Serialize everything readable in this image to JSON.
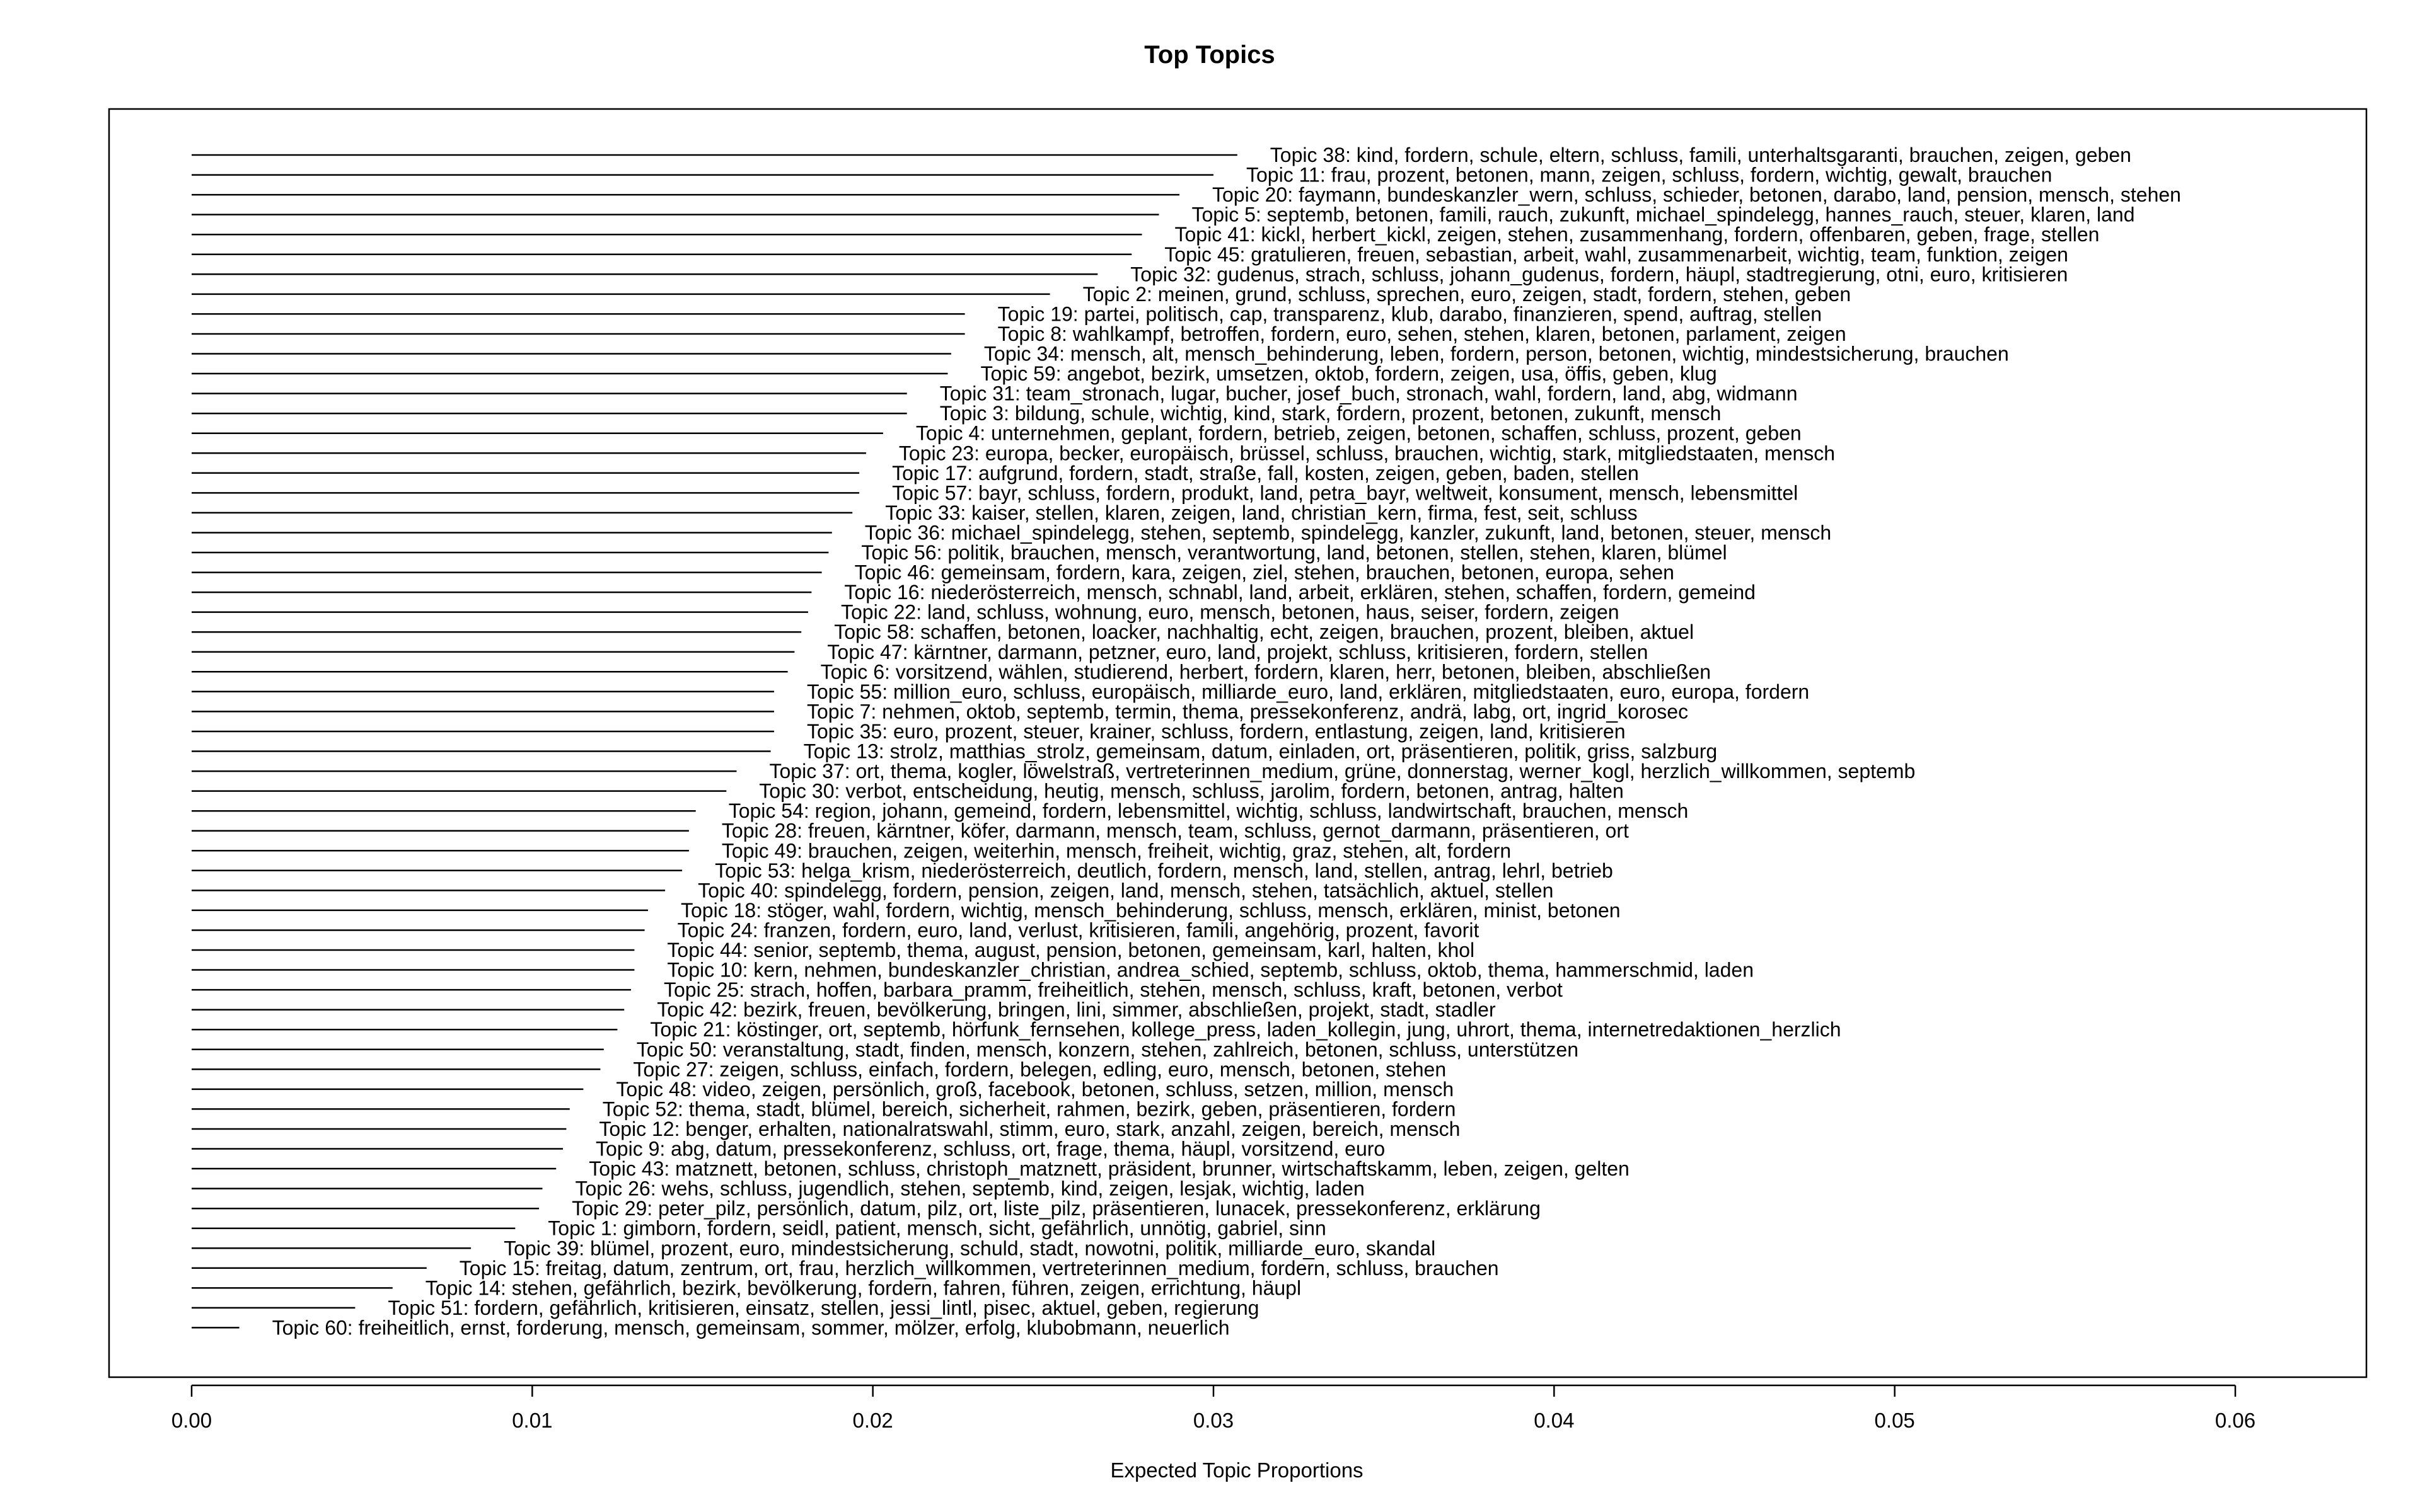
{
  "chart_data": {
    "type": "bar",
    "orientation": "horizontal",
    "title": "Top Topics",
    "xlabel": "Expected Topic Proportions",
    "xlim": [
      0.0,
      0.06
    ],
    "xticks": [
      "0.00",
      "0.01",
      "0.02",
      "0.03",
      "0.04",
      "0.05",
      "0.06"
    ],
    "xtick_values": [
      0.0,
      0.01,
      0.02,
      0.03,
      0.04,
      0.05,
      0.06
    ],
    "bars": [
      {
        "value": 0.0307,
        "label": "Topic 38: kind, fordern, schule, eltern, schluss, famili, unterhaltsgaranti, brauchen, zeigen, geben"
      },
      {
        "value": 0.03,
        "label": "Topic 11: frau, prozent, betonen, mann, zeigen, schluss, fordern, wichtig, gewalt, brauchen"
      },
      {
        "value": 0.029,
        "label": "Topic 20: faymann, bundeskanzler_wern, schluss, schieder, betonen, darabo, land, pension, mensch, stehen"
      },
      {
        "value": 0.0284,
        "label": "Topic 5: septemb, betonen, famili, rauch, zukunft, michael_spindelegg, hannes_rauch, steuer, klaren, land"
      },
      {
        "value": 0.0279,
        "label": "Topic 41: kickl, herbert_kickl, zeigen, stehen, zusammenhang, fordern, offenbaren, geben, frage, stellen"
      },
      {
        "value": 0.0276,
        "label": "Topic 45: gratulieren, freuen, sebastian, arbeit, wahl, zusammenarbeit, wichtig, team, funktion, zeigen"
      },
      {
        "value": 0.0266,
        "label": "Topic 32: gudenus, strach, schluss, johann_gudenus, fordern, häupl, stadtregierung, otni, euro, kritisieren"
      },
      {
        "value": 0.0252,
        "label": "Topic 2: meinen, grund, schluss, sprechen, euro, zeigen, stadt, fordern, stehen, geben"
      },
      {
        "value": 0.0227,
        "label": "Topic 19: partei, politisch, cap, transparenz, klub, darabo, finanzieren, spend, auftrag, stellen"
      },
      {
        "value": 0.0227,
        "label": "Topic 8: wahlkampf, betroffen, fordern, euro, sehen, stehen, klaren, betonen, parlament, zeigen"
      },
      {
        "value": 0.0223,
        "label": "Topic 34: mensch, alt, mensch_behinderung, leben, fordern, person, betonen, wichtig, mindestsicherung, brauchen"
      },
      {
        "value": 0.0222,
        "label": "Topic 59: angebot, bezirk, umsetzen, oktob, fordern, zeigen, usa, öffis, geben, klug"
      },
      {
        "value": 0.021,
        "label": "Topic 31: team_stronach, lugar, bucher, josef_buch, stronach, wahl, fordern, land, abg, widmann"
      },
      {
        "value": 0.021,
        "label": "Topic 3: bildung, schule, wichtig, kind, stark, fordern, prozent, betonen, zukunft, mensch"
      },
      {
        "value": 0.0203,
        "label": "Topic 4: unternehmen, geplant, fordern, betrieb, zeigen, betonen, schaffen, schluss, prozent, geben"
      },
      {
        "value": 0.0198,
        "label": "Topic 23: europa, becker, europäisch, brüssel, schluss, brauchen, wichtig, stark, mitgliedstaaten, mensch"
      },
      {
        "value": 0.0196,
        "label": "Topic 17: aufgrund, fordern, stadt, straße, fall, kosten, zeigen, geben, baden, stellen"
      },
      {
        "value": 0.0196,
        "label": "Topic 57: bayr, schluss, fordern, produkt, land, petra_bayr, weltweit, konsument, mensch, lebensmittel"
      },
      {
        "value": 0.0194,
        "label": "Topic 33: kaiser, stellen, klaren, zeigen, land, christian_kern, firma, fest, seit, schluss"
      },
      {
        "value": 0.0188,
        "label": "Topic 36: michael_spindelegg, stehen, septemb, spindelegg, kanzler, zukunft, land, betonen, steuer, mensch"
      },
      {
        "value": 0.0187,
        "label": "Topic 56: politik, brauchen, mensch, verantwortung, land, betonen, stellen, stehen, klaren, blümel"
      },
      {
        "value": 0.0185,
        "label": "Topic 46: gemeinsam, fordern, kara, zeigen, ziel, stehen, brauchen, betonen, europa, sehen"
      },
      {
        "value": 0.0182,
        "label": "Topic 16: niederösterreich, mensch, schnabl, land, arbeit, erklären, stehen, schaffen, fordern, gemeind"
      },
      {
        "value": 0.0181,
        "label": "Topic 22: land, schluss, wohnung, euro, mensch, betonen, haus, seiser, fordern, zeigen"
      },
      {
        "value": 0.0179,
        "label": "Topic 58: schaffen, betonen, loacker, nachhaltig, echt, zeigen, brauchen, prozent, bleiben, aktuel"
      },
      {
        "value": 0.0177,
        "label": "Topic 47: kärntner, darmann, petzner, euro, land, projekt, schluss, kritisieren, fordern, stellen"
      },
      {
        "value": 0.0175,
        "label": "Topic 6: vorsitzend, wählen, studierend, herbert, fordern, klaren, herr, betonen, bleiben, abschließen"
      },
      {
        "value": 0.0171,
        "label": "Topic 55: million_euro, schluss, europäisch, milliarde_euro, land, erklären, mitgliedstaaten, euro, europa, fordern"
      },
      {
        "value": 0.0171,
        "label": "Topic 7: nehmen, oktob, septemb, termin, thema, pressekonferenz, andrä, labg, ort, ingrid_korosec"
      },
      {
        "value": 0.0171,
        "label": "Topic 35: euro, prozent, steuer, krainer, schluss, fordern, entlastung, zeigen, land, kritisieren"
      },
      {
        "value": 0.017,
        "label": "Topic 13: strolz, matthias_strolz, gemeinsam, datum, einladen, ort, präsentieren, politik, griss, salzburg"
      },
      {
        "value": 0.016,
        "label": "Topic 37: ort, thema, kogler, löwelstraß, vertreterinnen_medium, grüne, donnerstag, werner_kogl, herzlich_willkommen, septemb"
      },
      {
        "value": 0.0157,
        "label": "Topic 30: verbot, entscheidung, heutig, mensch, schluss, jarolim, fordern, betonen, antrag, halten"
      },
      {
        "value": 0.0148,
        "label": "Topic 54: region, johann, gemeind, fordern, lebensmittel, wichtig, schluss, landwirtschaft, brauchen, mensch"
      },
      {
        "value": 0.0146,
        "label": "Topic 28: freuen, kärntner, köfer, darmann, mensch, team, schluss, gernot_darmann, präsentieren, ort"
      },
      {
        "value": 0.0146,
        "label": "Topic 49: brauchen, zeigen, weiterhin, mensch, freiheit, wichtig, graz, stehen, alt, fordern"
      },
      {
        "value": 0.0144,
        "label": "Topic 53: helga_krism, niederösterreich, deutlich, fordern, mensch, land, stellen, antrag, lehrl, betrieb"
      },
      {
        "value": 0.0139,
        "label": "Topic 40: spindelegg, fordern, pension, zeigen, land, mensch, stehen, tatsächlich, aktuel, stellen"
      },
      {
        "value": 0.0134,
        "label": "Topic 18: stöger, wahl, fordern, wichtig, mensch_behinderung, schluss, mensch, erklären, minist, betonen"
      },
      {
        "value": 0.0133,
        "label": "Topic 24: franzen, fordern, euro, land, verlust, kritisieren, famili, angehörig, prozent, favorit"
      },
      {
        "value": 0.013,
        "label": "Topic 44: senior, septemb, thema, august, pension, betonen, gemeinsam, karl, halten, khol"
      },
      {
        "value": 0.013,
        "label": "Topic 10: kern, nehmen, bundeskanzler_christian, andrea_schied, septemb, schluss, oktob, thema, hammerschmid, laden"
      },
      {
        "value": 0.0129,
        "label": "Topic 25: strach, hoffen, barbara_pramm, freiheitlich, stehen, mensch, schluss, kraft, betonen, verbot"
      },
      {
        "value": 0.0127,
        "label": "Topic 42: bezirk, freuen, bevölkerung, bringen, lini, simmer, abschließen, projekt, stadt, stadler"
      },
      {
        "value": 0.0125,
        "label": "Topic 21: köstinger, ort, septemb, hörfunk_fernsehen, kollege_press, laden_kollegin, jung, uhrort, thema, internetredaktionen_herzlich"
      },
      {
        "value": 0.0121,
        "label": "Topic 50: veranstaltung, stadt, finden, mensch, konzern, stehen, zahlreich, betonen, schluss, unterstützen"
      },
      {
        "value": 0.012,
        "label": "Topic 27: zeigen, schluss, einfach, fordern, belegen, edling, euro, mensch, betonen, stehen"
      },
      {
        "value": 0.0115,
        "label": "Topic 48: video, zeigen, persönlich, groß, facebook, betonen, schluss, setzen, million, mensch"
      },
      {
        "value": 0.0111,
        "label": "Topic 52: thema, stadt, blümel, bereich, sicherheit, rahmen, bezirk, geben, präsentieren, fordern"
      },
      {
        "value": 0.011,
        "label": "Topic 12: benger, erhalten, nationalratswahl, stimm, euro, stark, anzahl, zeigen, bereich, mensch"
      },
      {
        "value": 0.0109,
        "label": "Topic 9: abg, datum, pressekonferenz, schluss, ort, frage, thema, häupl, vorsitzend, euro"
      },
      {
        "value": 0.0107,
        "label": "Topic 43: matznett, betonen, schluss, christoph_matznett, präsident, brunner, wirtschaftskamm, leben, zeigen, gelten"
      },
      {
        "value": 0.0103,
        "label": "Topic 26: wehs, schluss, jugendlich, stehen, septemb, kind, zeigen, lesjak, wichtig, laden"
      },
      {
        "value": 0.0102,
        "label": "Topic 29: peter_pilz, persönlich, datum, pilz, ort, liste_pilz, präsentieren, lunacek, pressekonferenz, erklärung"
      },
      {
        "value": 0.0095,
        "label": "Topic 1: gimborn, fordern, seidl, patient, mensch, sicht, gefährlich, unnötig, gabriel, sinn"
      },
      {
        "value": 0.0082,
        "label": "Topic 39: blümel, prozent, euro, mindestsicherung, schuld, stadt, nowotni, politik, milliarde_euro, skandal"
      },
      {
        "value": 0.0069,
        "label": "Topic 15: freitag, datum, zentrum, ort, frau, herzlich_willkommen, vertreterinnen_medium, fordern, schluss, brauchen"
      },
      {
        "value": 0.0059,
        "label": "Topic 14: stehen, gefährlich, bezirk, bevölkerung, fordern, fahren, führen, zeigen, errichtung, häupl"
      },
      {
        "value": 0.0048,
        "label": "Topic 51: fordern, gefährlich, kritisieren, einsatz, stellen, jessi_lintl, pisec, aktuel, geben, regierung"
      },
      {
        "value": 0.0014,
        "label": "Topic 60: freiheitlich, ernst, forderung, mensch, gemeinsam, sommer, mölzer, erfolg, klubobmann, neuerlich"
      }
    ]
  }
}
